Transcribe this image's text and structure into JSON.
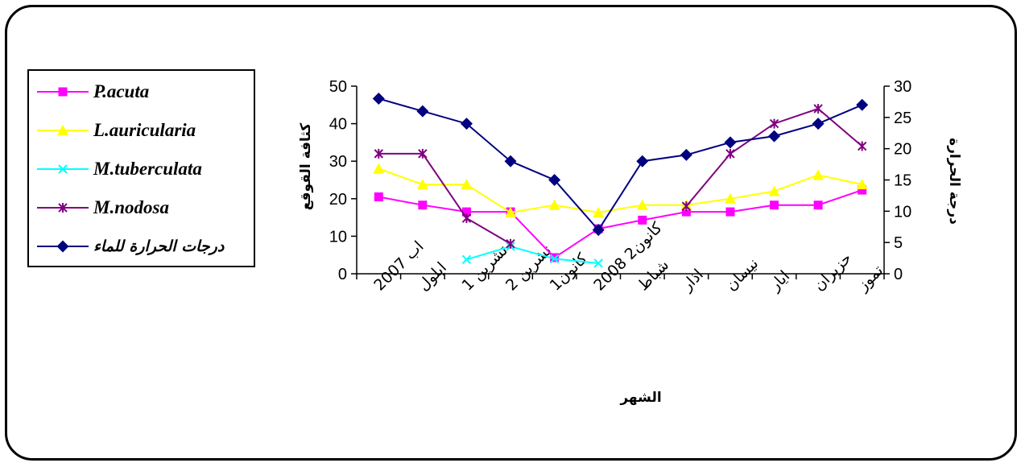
{
  "chart_data": {
    "type": "line",
    "xlabel": "الشهر",
    "ylabel": "كثافة القوقع",
    "y2label": "درجة الحرارة",
    "ylim": [
      0,
      50
    ],
    "y2lim": [
      0,
      30
    ],
    "yticks": [
      0,
      10,
      20,
      30,
      40,
      50
    ],
    "y2ticks": [
      0,
      5,
      10,
      15,
      20,
      25,
      30
    ],
    "grid": false,
    "legend_position": "left",
    "categories": [
      "ab 2007",
      "ايلول",
      "تشرين 1",
      "تشرين 2",
      "كانون1",
      "كانون2 2008",
      "شباط",
      "اذار",
      "نيسان",
      "ايار",
      "حزيران",
      "تموز"
    ],
    "category_labels": [
      "اب 2007",
      "ايلول",
      "تشرين 1",
      "تشرين 2",
      "كانون1",
      "كانون2 2008",
      "شباط",
      "اذار",
      "نيسان",
      "ايار",
      "حزيران",
      "تموز"
    ],
    "series": [
      {
        "name": "P.acuta",
        "axis": "left",
        "color": "#FF00FF",
        "marker": "square",
        "values": [
          20.5,
          18.3,
          16.5,
          16.5,
          4.3,
          12.0,
          14.3,
          16.5,
          16.5,
          18.3,
          18.3,
          22.3
        ]
      },
      {
        "name": "L.auricularia",
        "axis": "left",
        "color": "#FFFF00",
        "marker": "triangle",
        "values": [
          28.0,
          23.8,
          23.8,
          16.3,
          18.3,
          16.3,
          18.3,
          18.3,
          20.0,
          22.0,
          26.3,
          23.8
        ]
      },
      {
        "name": "M.tuberculata",
        "axis": "left",
        "color": "#00FFFF",
        "marker": "x",
        "values": [
          null,
          null,
          3.8,
          7.3,
          4.0,
          2.8,
          null,
          null,
          null,
          null,
          null,
          null
        ]
      },
      {
        "name": "M.nodosa",
        "axis": "left",
        "color": "#800080",
        "marker": "star",
        "values": [
          32.0,
          32.0,
          14.8,
          8.0,
          null,
          null,
          null,
          18.0,
          32.0,
          40.0,
          44.0,
          34.0
        ]
      },
      {
        "name": "درجات الحرارة للماء",
        "axis": "right",
        "color": "#000080",
        "marker": "diamond",
        "values": [
          28.0,
          26.0,
          24.0,
          18.0,
          15.0,
          7.0,
          18.0,
          19.0,
          21.0,
          22.0,
          24.0,
          27.0
        ]
      }
    ]
  }
}
